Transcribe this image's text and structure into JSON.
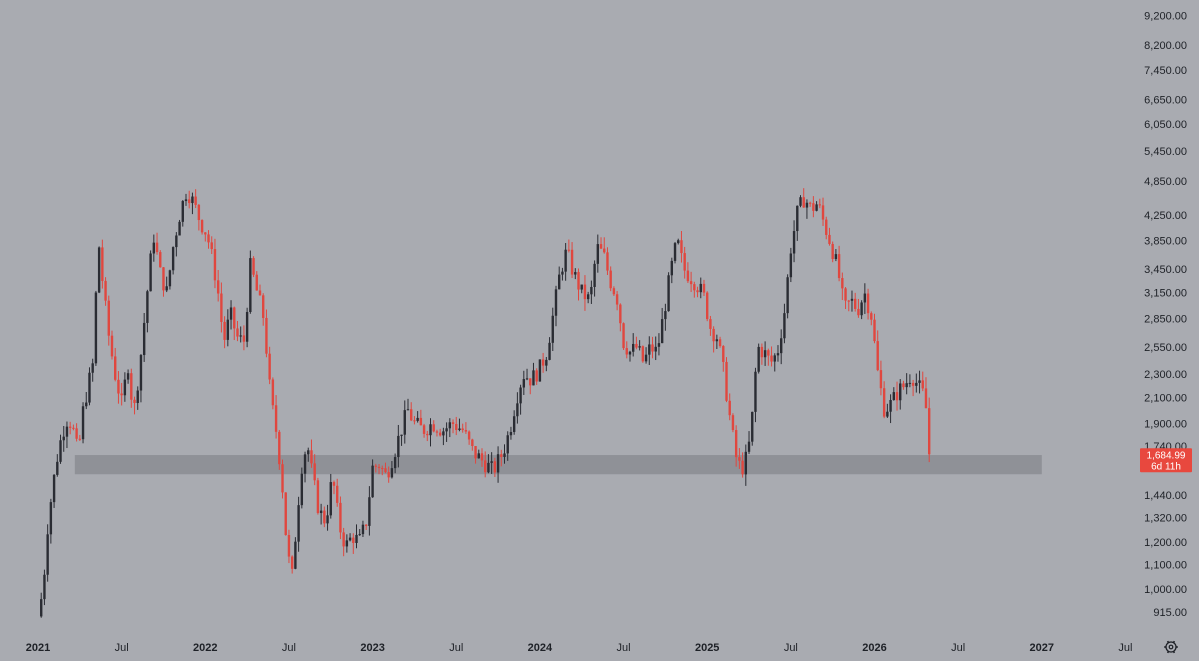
{
  "colors": {
    "background": "#a9abb1",
    "up_candle": "#2a2c33",
    "down_candle": "#e0473f",
    "zone": "#8f9197",
    "price_badge": "#e8483e",
    "text": "#1e2127"
  },
  "icons": {
    "settings": "gear-icon"
  },
  "chart_data": {
    "type": "candlestick",
    "title": "",
    "xlabel": "",
    "ylabel": "",
    "scale": "log",
    "grid": false,
    "legend": "none",
    "ylim": [
      860,
      9800
    ],
    "xlim": [
      2021.0,
      2027.6
    ],
    "y_ticks": [
      {
        "value": 9200,
        "label": "9,200.00"
      },
      {
        "value": 8200,
        "label": "8,200.00"
      },
      {
        "value": 7450,
        "label": "7,450.00"
      },
      {
        "value": 6650,
        "label": "6,650.00"
      },
      {
        "value": 6050,
        "label": "6,050.00"
      },
      {
        "value": 5450,
        "label": "5,450.00"
      },
      {
        "value": 4850,
        "label": "4,850.00"
      },
      {
        "value": 4250,
        "label": "4,250.00"
      },
      {
        "value": 3850,
        "label": "3,850.00"
      },
      {
        "value": 3450,
        "label": "3,450.00"
      },
      {
        "value": 3150,
        "label": "3,150.00"
      },
      {
        "value": 2850,
        "label": "2,850.00"
      },
      {
        "value": 2550,
        "label": "2,550.00"
      },
      {
        "value": 2300,
        "label": "2,300.00"
      },
      {
        "value": 2100,
        "label": "2,100.00"
      },
      {
        "value": 1900,
        "label": "1,900.00"
      },
      {
        "value": 1740,
        "label": "1,740.00"
      },
      {
        "value": 1440,
        "label": "1,440.00"
      },
      {
        "value": 1320,
        "label": "1,320.00"
      },
      {
        "value": 1200,
        "label": "1,200.00"
      },
      {
        "value": 1100,
        "label": "1,100.00"
      },
      {
        "value": 1000,
        "label": "1,000.00"
      },
      {
        "value": 915,
        "label": "915.00"
      }
    ],
    "x_ticks": [
      {
        "value": 2021.0,
        "label": "2021",
        "major": true
      },
      {
        "value": 2021.5,
        "label": "Jul",
        "major": false
      },
      {
        "value": 2022.0,
        "label": "2022",
        "major": true
      },
      {
        "value": 2022.5,
        "label": "Jul",
        "major": false
      },
      {
        "value": 2023.0,
        "label": "2023",
        "major": true
      },
      {
        "value": 2023.5,
        "label": "Jul",
        "major": false
      },
      {
        "value": 2024.0,
        "label": "2024",
        "major": true
      },
      {
        "value": 2024.5,
        "label": "Jul",
        "major": false
      },
      {
        "value": 2025.0,
        "label": "2025",
        "major": true
      },
      {
        "value": 2025.5,
        "label": "Jul",
        "major": false
      },
      {
        "value": 2026.0,
        "label": "2026",
        "major": true
      },
      {
        "value": 2026.5,
        "label": "Jul",
        "major": false
      },
      {
        "value": 2027.0,
        "label": "2027",
        "major": true
      },
      {
        "value": 2027.5,
        "label": "Jul",
        "major": false
      }
    ],
    "support_zone": {
      "y_low": 1560,
      "y_high": 1680,
      "x_start": 2021.22,
      "x_end": 2027.0
    },
    "current_price": {
      "value": 1684.99,
      "label": "1,684.99",
      "countdown": "6d 11h"
    },
    "price_path": [
      [
        2021.0,
        900
      ],
      [
        2021.03,
        1000
      ],
      [
        2021.06,
        1300
      ],
      [
        2021.09,
        1500
      ],
      [
        2021.12,
        1700
      ],
      [
        2021.15,
        1850
      ],
      [
        2021.18,
        1950
      ],
      [
        2021.21,
        1850
      ],
      [
        2021.24,
        1680
      ],
      [
        2021.27,
        2000
      ],
      [
        2021.3,
        2200
      ],
      [
        2021.33,
        2400
      ],
      [
        2021.36,
        3900
      ],
      [
        2021.39,
        3200
      ],
      [
        2021.42,
        2700
      ],
      [
        2021.46,
        2300
      ],
      [
        2021.5,
        2050
      ],
      [
        2021.54,
        2400
      ],
      [
        2021.57,
        1950
      ],
      [
        2021.61,
        2400
      ],
      [
        2021.65,
        3100
      ],
      [
        2021.69,
        3950
      ],
      [
        2021.73,
        3400
      ],
      [
        2021.77,
        3150
      ],
      [
        2021.81,
        3800
      ],
      [
        2021.85,
        4300
      ],
      [
        2021.89,
        4700
      ],
      [
        2021.93,
        4450
      ],
      [
        2021.97,
        4150
      ],
      [
        2022.01,
        3950
      ],
      [
        2022.05,
        3500
      ],
      [
        2022.08,
        3100
      ],
      [
        2022.11,
        2600
      ],
      [
        2022.15,
        2900
      ],
      [
        2022.19,
        2650
      ],
      [
        2022.23,
        2600
      ],
      [
        2022.27,
        3500
      ],
      [
        2022.31,
        3150
      ],
      [
        2022.35,
        2850
      ],
      [
        2022.39,
        2100
      ],
      [
        2022.43,
        1800
      ],
      [
        2022.46,
        1500
      ],
      [
        2022.49,
        1150
      ],
      [
        2022.52,
        1050
      ],
      [
        2022.55,
        1350
      ],
      [
        2022.58,
        1650
      ],
      [
        2022.61,
        1750
      ],
      [
        2022.64,
        1550
      ],
      [
        2022.68,
        1350
      ],
      [
        2022.72,
        1300
      ],
      [
        2022.76,
        1550
      ],
      [
        2022.8,
        1280
      ],
      [
        2022.84,
        1180
      ],
      [
        2022.88,
        1230
      ],
      [
        2022.92,
        1200
      ],
      [
        2022.96,
        1290
      ],
      [
        2023.0,
        1600
      ],
      [
        2023.04,
        1620
      ],
      [
        2023.08,
        1550
      ],
      [
        2023.13,
        1700
      ],
      [
        2023.17,
        1850
      ],
      [
        2023.21,
        2000
      ],
      [
        2023.25,
        1900
      ],
      [
        2023.3,
        1850
      ],
      [
        2023.36,
        1900
      ],
      [
        2023.42,
        1850
      ],
      [
        2023.48,
        1900
      ],
      [
        2023.54,
        1850
      ],
      [
        2023.6,
        1700
      ],
      [
        2023.66,
        1640
      ],
      [
        2023.72,
        1580
      ],
      [
        2023.78,
        1700
      ],
      [
        2023.82,
        1850
      ],
      [
        2023.86,
        2100
      ],
      [
        2023.9,
        2300
      ],
      [
        2023.95,
        2250
      ],
      [
        2024.0,
        2350
      ],
      [
        2024.04,
        2500
      ],
      [
        2024.08,
        2900
      ],
      [
        2024.12,
        3400
      ],
      [
        2024.16,
        3700
      ],
      [
        2024.2,
        3400
      ],
      [
        2024.25,
        3150
      ],
      [
        2024.3,
        3050
      ],
      [
        2024.34,
        3750
      ],
      [
        2024.38,
        3650
      ],
      [
        2024.42,
        3300
      ],
      [
        2024.46,
        3100
      ],
      [
        2024.5,
        2600
      ],
      [
        2024.54,
        2500
      ],
      [
        2024.58,
        2550
      ],
      [
        2024.62,
        2400
      ],
      [
        2024.66,
        2550
      ],
      [
        2024.7,
        2500
      ],
      [
        2024.74,
        2900
      ],
      [
        2024.78,
        3400
      ],
      [
        2024.82,
        3850
      ],
      [
        2024.86,
        3450
      ],
      [
        2024.9,
        3350
      ],
      [
        2024.94,
        3250
      ],
      [
        2024.98,
        3100
      ],
      [
        2025.02,
        2750
      ],
      [
        2025.06,
        2650
      ],
      [
        2025.1,
        2300
      ],
      [
        2025.14,
        1900
      ],
      [
        2025.18,
        1620
      ],
      [
        2025.22,
        1600
      ],
      [
        2025.26,
        1800
      ],
      [
        2025.3,
        2550
      ],
      [
        2025.34,
        2500
      ],
      [
        2025.38,
        2400
      ],
      [
        2025.42,
        2500
      ],
      [
        2025.46,
        2900
      ],
      [
        2025.5,
        3750
      ],
      [
        2025.54,
        4300
      ],
      [
        2025.58,
        4550
      ],
      [
        2025.62,
        4350
      ],
      [
        2025.66,
        4450
      ],
      [
        2025.7,
        4100
      ],
      [
        2025.74,
        3800
      ],
      [
        2025.78,
        3450
      ],
      [
        2025.82,
        2950
      ],
      [
        2025.86,
        3050
      ],
      [
        2025.9,
        2950
      ],
      [
        2025.94,
        3150
      ],
      [
        2025.98,
        2900
      ],
      [
        2026.02,
        2300
      ],
      [
        2026.06,
        2000
      ],
      [
        2026.1,
        2050
      ],
      [
        2026.14,
        2150
      ],
      [
        2026.18,
        2200
      ],
      [
        2026.22,
        2300
      ],
      [
        2026.26,
        2200
      ],
      [
        2026.3,
        2100
      ],
      [
        2026.34,
        1684.99
      ]
    ]
  }
}
